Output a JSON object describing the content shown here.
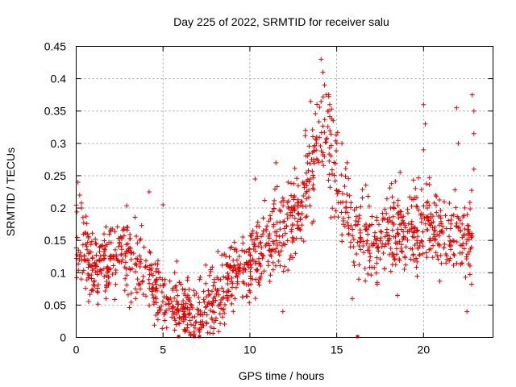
{
  "chart_data": {
    "type": "scatter",
    "title": "Day 225 of 2022, SRMTID for receiver salu",
    "xlabel": "GPS time / hours",
    "ylabel": "SRMTID / TECUs",
    "xlim": [
      0,
      24
    ],
    "ylim": [
      0,
      0.45
    ],
    "xticks": [
      0,
      5,
      10,
      15,
      20
    ],
    "xtick_labels": [
      "0",
      "5",
      "10",
      "15",
      "20"
    ],
    "yticks": [
      0,
      0.05,
      0.1,
      0.15,
      0.2,
      0.25,
      0.3,
      0.35,
      0.4,
      0.45
    ],
    "ytick_labels": [
      "0",
      "0.05",
      "0.1",
      "0.15",
      "0.2",
      "0.25",
      "0.3",
      "0.35",
      "0.4",
      "0.45"
    ],
    "grid": true,
    "marker": "+",
    "color": "#e00000",
    "trend": [
      {
        "x": 0.0,
        "y": 0.14
      },
      {
        "x": 0.5,
        "y": 0.13
      },
      {
        "x": 1.0,
        "y": 0.11
      },
      {
        "x": 2.0,
        "y": 0.12
      },
      {
        "x": 3.0,
        "y": 0.125
      },
      {
        "x": 4.0,
        "y": 0.11
      },
      {
        "x": 4.5,
        "y": 0.075
      },
      {
        "x": 5.0,
        "y": 0.055
      },
      {
        "x": 6.0,
        "y": 0.05
      },
      {
        "x": 7.0,
        "y": 0.04
      },
      {
        "x": 8.0,
        "y": 0.05
      },
      {
        "x": 9.0,
        "y": 0.1
      },
      {
        "x": 10.0,
        "y": 0.11
      },
      {
        "x": 11.0,
        "y": 0.15
      },
      {
        "x": 12.0,
        "y": 0.17
      },
      {
        "x": 13.0,
        "y": 0.2
      },
      {
        "x": 13.5,
        "y": 0.25
      },
      {
        "x": 14.0,
        "y": 0.3
      },
      {
        "x": 14.5,
        "y": 0.29
      },
      {
        "x": 15.0,
        "y": 0.25
      },
      {
        "x": 15.5,
        "y": 0.2
      },
      {
        "x": 16.0,
        "y": 0.16
      },
      {
        "x": 17.0,
        "y": 0.16
      },
      {
        "x": 18.0,
        "y": 0.16
      },
      {
        "x": 19.0,
        "y": 0.17
      },
      {
        "x": 20.0,
        "y": 0.17
      },
      {
        "x": 21.0,
        "y": 0.165
      },
      {
        "x": 22.0,
        "y": 0.155
      },
      {
        "x": 22.8,
        "y": 0.155
      }
    ],
    "outliers": [
      {
        "x": 0.1,
        "y": 0.24
      },
      {
        "x": 0.2,
        "y": 0.22
      },
      {
        "x": 0.3,
        "y": 0.2
      },
      {
        "x": 4.2,
        "y": 0.225
      },
      {
        "x": 5.0,
        "y": 0.205
      },
      {
        "x": 10.3,
        "y": 0.245
      },
      {
        "x": 11.5,
        "y": 0.27
      },
      {
        "x": 12.2,
        "y": 0.24
      },
      {
        "x": 13.5,
        "y": 0.365
      },
      {
        "x": 13.2,
        "y": 0.32
      },
      {
        "x": 14.1,
        "y": 0.43
      },
      {
        "x": 14.2,
        "y": 0.41
      },
      {
        "x": 14.3,
        "y": 0.39
      },
      {
        "x": 14.4,
        "y": 0.375
      },
      {
        "x": 14.6,
        "y": 0.36
      },
      {
        "x": 14.8,
        "y": 0.335
      },
      {
        "x": 15.3,
        "y": 0.3
      },
      {
        "x": 15.6,
        "y": 0.27
      },
      {
        "x": 20.0,
        "y": 0.36
      },
      {
        "x": 20.1,
        "y": 0.33
      },
      {
        "x": 20.0,
        "y": 0.29
      },
      {
        "x": 21.9,
        "y": 0.355
      },
      {
        "x": 22.0,
        "y": 0.3
      },
      {
        "x": 22.8,
        "y": 0.375
      },
      {
        "x": 22.9,
        "y": 0.35
      },
      {
        "x": 22.9,
        "y": 0.315
      },
      {
        "x": 22.9,
        "y": 0.26
      },
      {
        "x": 22.5,
        "y": 0.04
      },
      {
        "x": 11.9,
        "y": 0.04
      },
      {
        "x": 15.9,
        "y": 0.06
      },
      {
        "x": 18.5,
        "y": 0.065
      }
    ],
    "zero_points": [
      5.9,
      6.8,
      7.1,
      16.2
    ],
    "n_scatter_points": 1400,
    "spread": 0.035
  }
}
